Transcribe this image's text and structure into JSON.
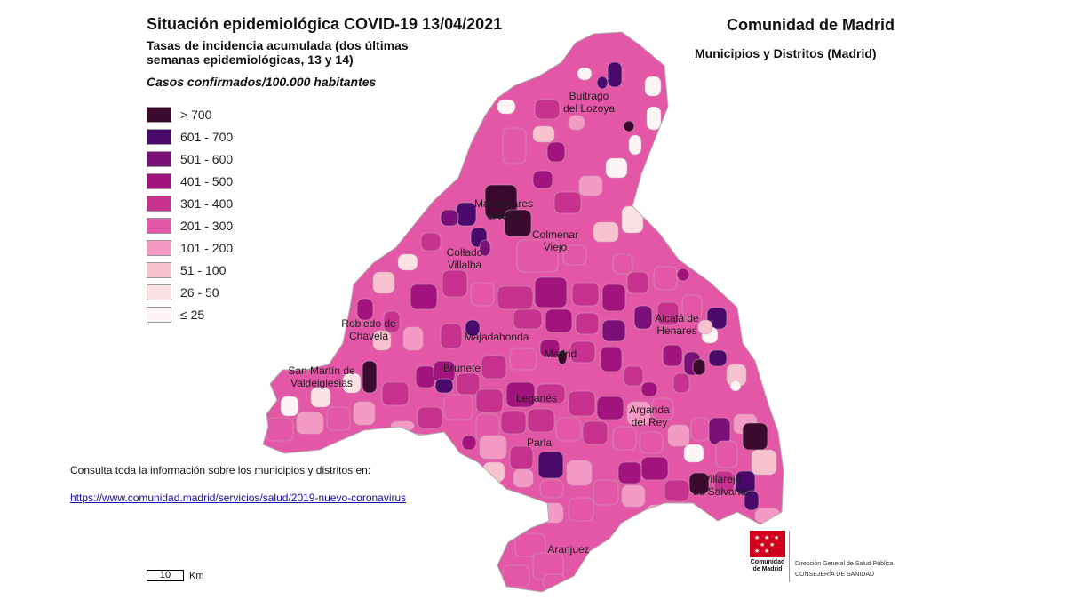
{
  "header": {
    "title": "Situación epidemiológica COVID-19  13/04/2021",
    "subtitle_line1": "Tasas de incidencia acumulada (dos últimas",
    "subtitle_line2": "semanas epidemiológicas, 13 y 14)",
    "units": "Casos confirmados/100.000 habitantes",
    "region": "Comunidad de Madrid",
    "scope": "Municipios y Distritos (Madrid)"
  },
  "legend": [
    {
      "label": "> 700",
      "color": "#3b0a2e"
    },
    {
      "label": "601 - 700",
      "color": "#4a0a6b"
    },
    {
      "label": "501 - 600",
      "color": "#7a0f7a"
    },
    {
      "label": "401 - 500",
      "color": "#a3137e"
    },
    {
      "label": "301 - 400",
      "color": "#c8328f"
    },
    {
      "label": "201 - 300",
      "color": "#e457a6"
    },
    {
      "label": "101 - 200",
      "color": "#f39bc4"
    },
    {
      "label": "51 - 100",
      "color": "#f8c3cf"
    },
    {
      "label": "26 - 50",
      "color": "#fbe0e4"
    },
    {
      "label": "≤ 25",
      "color": "#fdf5f5"
    }
  ],
  "places": [
    {
      "name": "Buitrago",
      "line2": "del Lozoya"
    },
    {
      "name": "Manzanares",
      "line2": "el Real"
    },
    {
      "name": "Colmenar",
      "line2": "Viejo"
    },
    {
      "name": "Collado",
      "line2": "Villalba"
    },
    {
      "name": "Robledo de",
      "line2": "Chavela"
    },
    {
      "name": "Majadahonda",
      "line2": ""
    },
    {
      "name": "Alcalá de",
      "line2": "Henares"
    },
    {
      "name": "San Martín de",
      "line2": "Valdeiglesias"
    },
    {
      "name": "Brunete",
      "line2": ""
    },
    {
      "name": "Madrid",
      "line2": ""
    },
    {
      "name": "Leganés",
      "line2": ""
    },
    {
      "name": "Arganda",
      "line2": "del Rey"
    },
    {
      "name": "Parla",
      "line2": ""
    },
    {
      "name": "Villarejo",
      "line2": "de Salvanés"
    },
    {
      "name": "Aranjuez",
      "line2": ""
    }
  ],
  "footer": {
    "consult_text": "Consulta toda la información sobre los municipios y distritos en:",
    "link": "https://www.comunidad.madrid/servicios/salud/2019-nuevo-coronavirus",
    "scale_value": "10",
    "scale_unit": "Km"
  },
  "logo": {
    "name_line1": "Comunidad",
    "name_line2": "de Madrid",
    "dept_line1": "Dirección General de Salud Pública",
    "dept_line2": "CONSEJERÍA DE SANIDAD"
  }
}
